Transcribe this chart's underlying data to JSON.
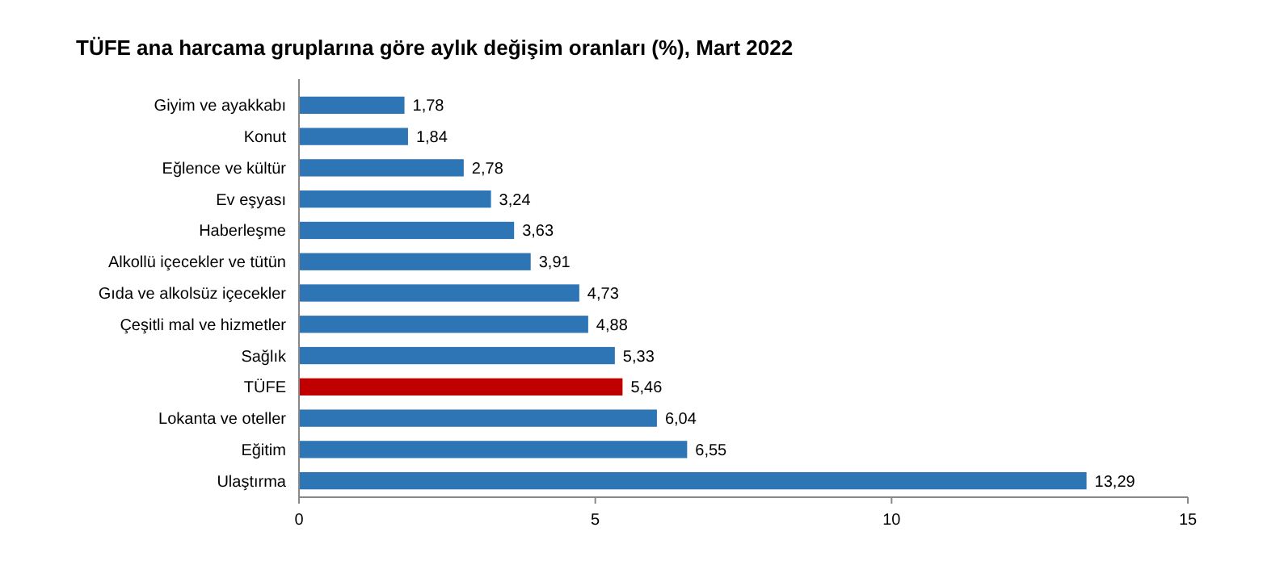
{
  "chart_data": {
    "type": "bar",
    "orientation": "horizontal",
    "title": "TÜFE ana harcama gruplarına göre aylık değişim oranları (%), Mart 2022",
    "categories": [
      "Giyim ve ayakkabı",
      "Konut",
      "Eğlence ve kültür",
      "Ev eşyası",
      "Haberleşme",
      "Alkollü içecekler ve tütün",
      "Gıda ve alkolsüz içecekler",
      "Çeşitli mal ve hizmetler",
      "Sağlık",
      "TÜFE",
      "Lokanta ve oteller",
      "Eğitim",
      "Ulaştırma"
    ],
    "values": [
      1.78,
      1.84,
      2.78,
      3.24,
      3.63,
      3.91,
      4.73,
      4.88,
      5.33,
      5.46,
      6.04,
      6.55,
      13.29
    ],
    "colors": [
      "#2e75b6",
      "#2e75b6",
      "#2e75b6",
      "#2e75b6",
      "#2e75b6",
      "#2e75b6",
      "#2e75b6",
      "#2e75b6",
      "#2e75b6",
      "#c00000",
      "#2e75b6",
      "#2e75b6",
      "#2e75b6"
    ],
    "value_labels": [
      "1,78",
      "1,84",
      "2,78",
      "3,24",
      "3,63",
      "3,91",
      "4,73",
      "4,88",
      "5,33",
      "5,46",
      "6,04",
      "6,55",
      "13,29"
    ],
    "xlim": [
      0,
      15
    ],
    "xticks": [
      0,
      5,
      10,
      15
    ],
    "grid": false
  }
}
